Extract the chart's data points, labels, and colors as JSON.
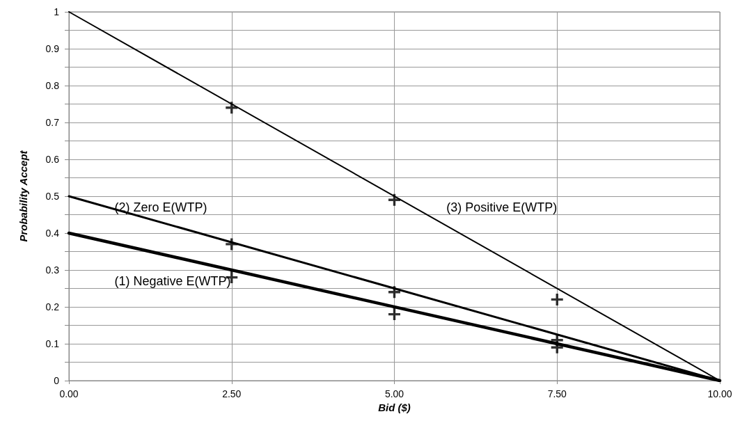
{
  "chart_data": {
    "type": "line",
    "xlabel": "Bid ($)",
    "ylabel": "Probability Accept",
    "xlim": [
      0,
      10
    ],
    "xticks": [
      {
        "value": 0,
        "label": "0.00"
      },
      {
        "value": 2.5,
        "label": "2.50"
      },
      {
        "value": 5,
        "label": "5.00"
      },
      {
        "value": 7.5,
        "label": "7.50"
      },
      {
        "value": 10,
        "label": "10.00"
      }
    ],
    "ylim": [
      0,
      1
    ],
    "yticks": [
      0,
      0.1,
      0.2,
      0.3,
      0.4,
      0.5,
      0.6,
      0.7,
      0.8,
      0.9,
      1
    ],
    "grid": true,
    "legend": false,
    "marker": "none",
    "line_style": "solid",
    "series": [
      {
        "name": "(1) Negative E(WTP)",
        "color": "#000000",
        "x": [
          0,
          10
        ],
        "values": [
          0.4,
          0
        ]
      },
      {
        "name": "(2) Zero E(WTP)",
        "color": "#000000",
        "x": [
          0,
          10
        ],
        "values": [
          0.5,
          0
        ]
      },
      {
        "name": "(3) Positive E(WTP)",
        "color": "#000000",
        "x": [
          0,
          10
        ],
        "values": [
          1,
          0
        ]
      },
      {
        "type": "scatter",
        "marker": "cross",
        "color": "#000000",
        "x": [
          2.5,
          2.5,
          2.5,
          5,
          5,
          5,
          7.5,
          7.5,
          7.5
        ],
        "values": [
          0.28,
          0.37,
          0.74,
          0.18,
          0.24,
          0.49,
          0.09,
          0.11,
          0.22
        ]
      }
    ]
  }
}
